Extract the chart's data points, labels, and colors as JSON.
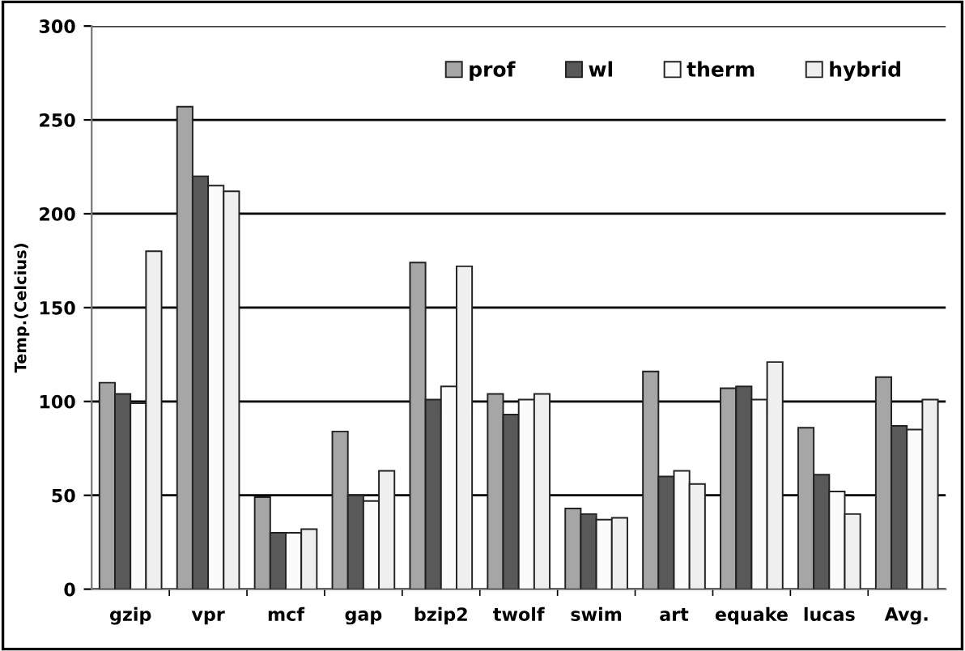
{
  "chart_data": {
    "type": "bar",
    "ylabel": "Temp.(Celcius)",
    "categories": [
      "gzip",
      "vpr",
      "mcf",
      "gap",
      "bzip2",
      "twolf",
      "swim",
      "art",
      "equake",
      "lucas",
      "Avg."
    ],
    "series": [
      {
        "name": "prof",
        "color": "#a6a6a6",
        "values": [
          110,
          257,
          49,
          84,
          174,
          104,
          43,
          116,
          107,
          86,
          113
        ]
      },
      {
        "name": "wl",
        "color": "#595959",
        "values": [
          104,
          220,
          30,
          50,
          101,
          93,
          40,
          60,
          108,
          61,
          87
        ]
      },
      {
        "name": "therm",
        "color": "#fbfbfb",
        "values": [
          99,
          215,
          30,
          47,
          108,
          101,
          37,
          63,
          101,
          52,
          85
        ]
      },
      {
        "name": "hybrid",
        "color": "#efefef",
        "values": [
          180,
          212,
          32,
          63,
          172,
          104,
          38,
          56,
          121,
          40,
          101
        ]
      }
    ],
    "ylim": [
      0,
      300
    ],
    "yticks": [
      0,
      50,
      100,
      150,
      200,
      250,
      300
    ],
    "grid": "y",
    "legend": "top right"
  }
}
